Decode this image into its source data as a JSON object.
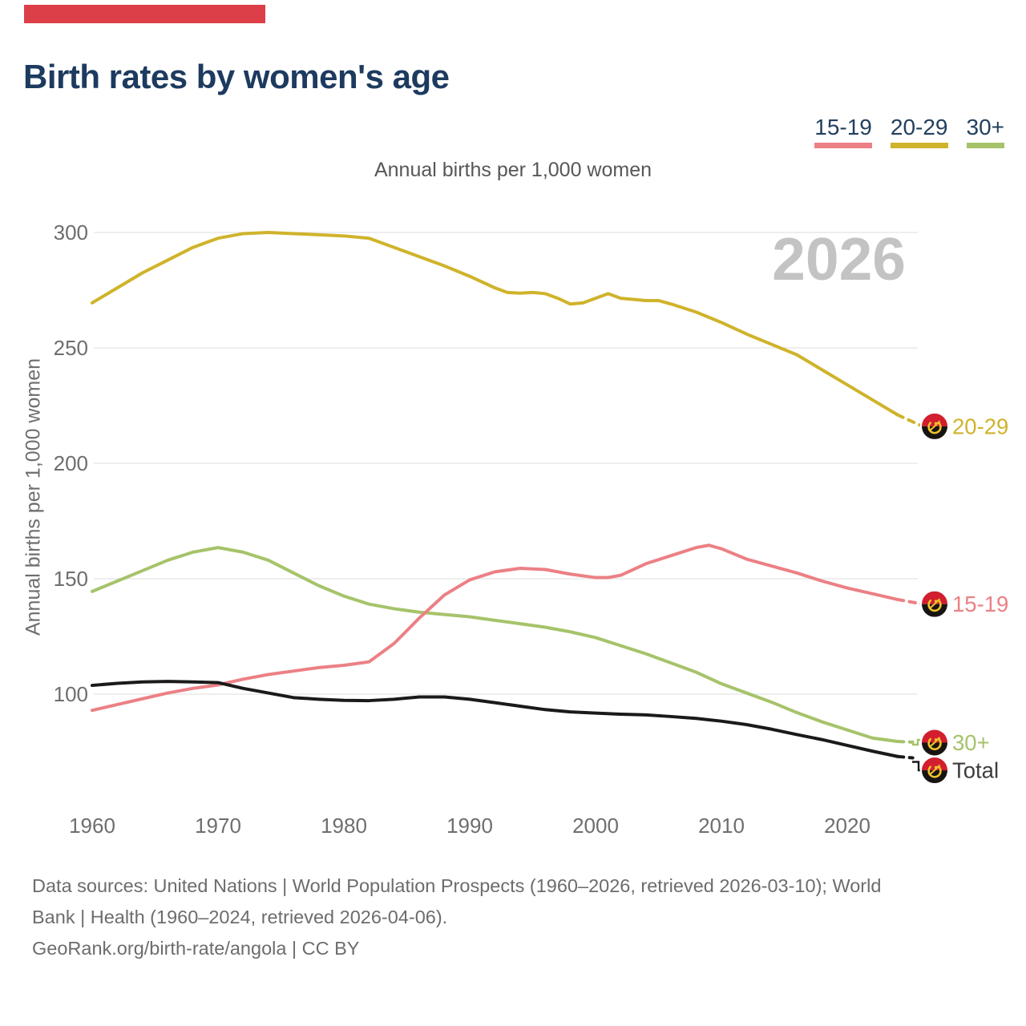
{
  "accent_color": "#dc3f48",
  "title": "Birth rates by women's age",
  "subtitle": "Annual births per 1,000 women",
  "y_axis_title": "Annual births per 1,000 women",
  "watermark": "2026",
  "legend": {
    "items": [
      {
        "label": "15-19",
        "color": "#ec8085"
      },
      {
        "label": "20-29",
        "color": "#cfb32b"
      },
      {
        "label": "30+",
        "color": "#a6c36a"
      }
    ]
  },
  "footer": {
    "line1": "Data sources: United Nations | World Population Prospects (1960–2026, retrieved 2026-03-10); World",
    "line2": "Bank | Health (1960–2024, retrieved 2026-04-06).",
    "line3": "GeoRank.org/birth-rate/angola | CC BY"
  },
  "chart_data": {
    "type": "line",
    "title": "Birth rates by women's age",
    "ylabel": "Annual births per 1,000 women",
    "x_ticks": [
      1960,
      1970,
      1980,
      1990,
      2000,
      2010,
      2020
    ],
    "y_ticks": [
      300,
      250,
      200,
      150,
      100
    ],
    "xlim": [
      1959.5,
      2027
    ],
    "ylim": [
      68,
      312
    ],
    "grid": "horizontal",
    "legend_position": "top-right",
    "watermark": "2026",
    "forecast_dashed_from": 2024,
    "end_marker_icon": "angola-flag",
    "series": [
      {
        "name": "20-29",
        "color": "#cfb32b",
        "end_label": "20-29",
        "points": [
          [
            1960,
            269.5
          ],
          [
            1962,
            276
          ],
          [
            1964,
            282.5
          ],
          [
            1966,
            288
          ],
          [
            1968,
            293.5
          ],
          [
            1970,
            297.5
          ],
          [
            1972,
            299.5
          ],
          [
            1974,
            300
          ],
          [
            1976,
            299.5
          ],
          [
            1978,
            299
          ],
          [
            1980,
            298.5
          ],
          [
            1982,
            297.5
          ],
          [
            1984,
            293.5
          ],
          [
            1986,
            289.5
          ],
          [
            1988,
            285.5
          ],
          [
            1990,
            281
          ],
          [
            1992,
            276
          ],
          [
            1993,
            274
          ],
          [
            1994,
            273.7
          ],
          [
            1995,
            274
          ],
          [
            1996,
            273.5
          ],
          [
            1997,
            271.5
          ],
          [
            1998,
            269
          ],
          [
            1999,
            269.5
          ],
          [
            2000,
            271.5
          ],
          [
            2001,
            273.5
          ],
          [
            2002,
            271.5
          ],
          [
            2003,
            271
          ],
          [
            2004,
            270.5
          ],
          [
            2005,
            270.5
          ],
          [
            2006,
            269
          ],
          [
            2008,
            265.5
          ],
          [
            2010,
            261
          ],
          [
            2012,
            256
          ],
          [
            2014,
            251.5
          ],
          [
            2016,
            247
          ],
          [
            2018,
            240.5
          ],
          [
            2020,
            234
          ],
          [
            2022,
            227.5
          ],
          [
            2024,
            221
          ],
          [
            2026,
            216
          ]
        ]
      },
      {
        "name": "30+",
        "color": "#a6c36a",
        "end_label": "30+",
        "points": [
          [
            1960,
            144.5
          ],
          [
            1962,
            149
          ],
          [
            1964,
            153.5
          ],
          [
            1966,
            158
          ],
          [
            1968,
            161.5
          ],
          [
            1970,
            163.5
          ],
          [
            1972,
            161.5
          ],
          [
            1974,
            158
          ],
          [
            1976,
            152.5
          ],
          [
            1978,
            147
          ],
          [
            1980,
            142.5
          ],
          [
            1982,
            139
          ],
          [
            1984,
            137
          ],
          [
            1986,
            135.5
          ],
          [
            1988,
            134.5
          ],
          [
            1990,
            133.5
          ],
          [
            1992,
            132
          ],
          [
            1994,
            130.5
          ],
          [
            1996,
            129
          ],
          [
            1998,
            127
          ],
          [
            2000,
            124.5
          ],
          [
            2002,
            121
          ],
          [
            2004,
            117.5
          ],
          [
            2006,
            113.5
          ],
          [
            2008,
            109.5
          ],
          [
            2010,
            104.5
          ],
          [
            2012,
            100.5
          ],
          [
            2014,
            96.5
          ],
          [
            2016,
            92
          ],
          [
            2018,
            88
          ],
          [
            2020,
            84.5
          ],
          [
            2022,
            81
          ],
          [
            2024,
            79.5
          ],
          [
            2026,
            79
          ]
        ]
      },
      {
        "name": "15-19",
        "color": "#ec8085",
        "end_label": "15-19",
        "points": [
          [
            1960,
            93
          ],
          [
            1962,
            95.5
          ],
          [
            1964,
            98
          ],
          [
            1966,
            100.5
          ],
          [
            1968,
            102.5
          ],
          [
            1970,
            104
          ],
          [
            1972,
            106.5
          ],
          [
            1974,
            108.5
          ],
          [
            1976,
            110
          ],
          [
            1978,
            111.5
          ],
          [
            1980,
            112.5
          ],
          [
            1982,
            114
          ],
          [
            1984,
            122
          ],
          [
            1986,
            133
          ],
          [
            1988,
            143
          ],
          [
            1990,
            149.5
          ],
          [
            1992,
            153
          ],
          [
            1994,
            154.5
          ],
          [
            1996,
            154
          ],
          [
            1998,
            152
          ],
          [
            2000,
            150.5
          ],
          [
            2001,
            150.5
          ],
          [
            2002,
            151.5
          ],
          [
            2004,
            156.5
          ],
          [
            2006,
            160
          ],
          [
            2008,
            163.5
          ],
          [
            2009,
            164.5
          ],
          [
            2010,
            163
          ],
          [
            2012,
            158.5
          ],
          [
            2014,
            155.5
          ],
          [
            2016,
            152.5
          ],
          [
            2018,
            149
          ],
          [
            2020,
            146
          ],
          [
            2022,
            143.5
          ],
          [
            2024,
            141
          ],
          [
            2026,
            139
          ]
        ]
      },
      {
        "name": "Total",
        "color": "#1a1a1a",
        "label_color": "#3c3c3c",
        "end_label": "Total",
        "points": [
          [
            1960,
            103.8
          ],
          [
            1962,
            104.7
          ],
          [
            1964,
            105.3
          ],
          [
            1966,
            105.5
          ],
          [
            1968,
            105.3
          ],
          [
            1970,
            105
          ],
          [
            1972,
            102.5
          ],
          [
            1974,
            100.5
          ],
          [
            1976,
            98.5
          ],
          [
            1978,
            97.8
          ],
          [
            1980,
            97.3
          ],
          [
            1982,
            97.2
          ],
          [
            1984,
            97.8
          ],
          [
            1986,
            98.8
          ],
          [
            1988,
            98.8
          ],
          [
            1990,
            97.8
          ],
          [
            1992,
            96.3
          ],
          [
            1994,
            94.8
          ],
          [
            1996,
            93.3
          ],
          [
            1998,
            92.3
          ],
          [
            2000,
            91.8
          ],
          [
            2002,
            91.3
          ],
          [
            2004,
            91
          ],
          [
            2006,
            90.3
          ],
          [
            2008,
            89.5
          ],
          [
            2010,
            88.3
          ],
          [
            2012,
            86.8
          ],
          [
            2014,
            84.8
          ],
          [
            2016,
            82.5
          ],
          [
            2018,
            80.3
          ],
          [
            2020,
            77.8
          ],
          [
            2022,
            75.3
          ],
          [
            2024,
            73
          ],
          [
            2026,
            72
          ]
        ]
      }
    ]
  }
}
